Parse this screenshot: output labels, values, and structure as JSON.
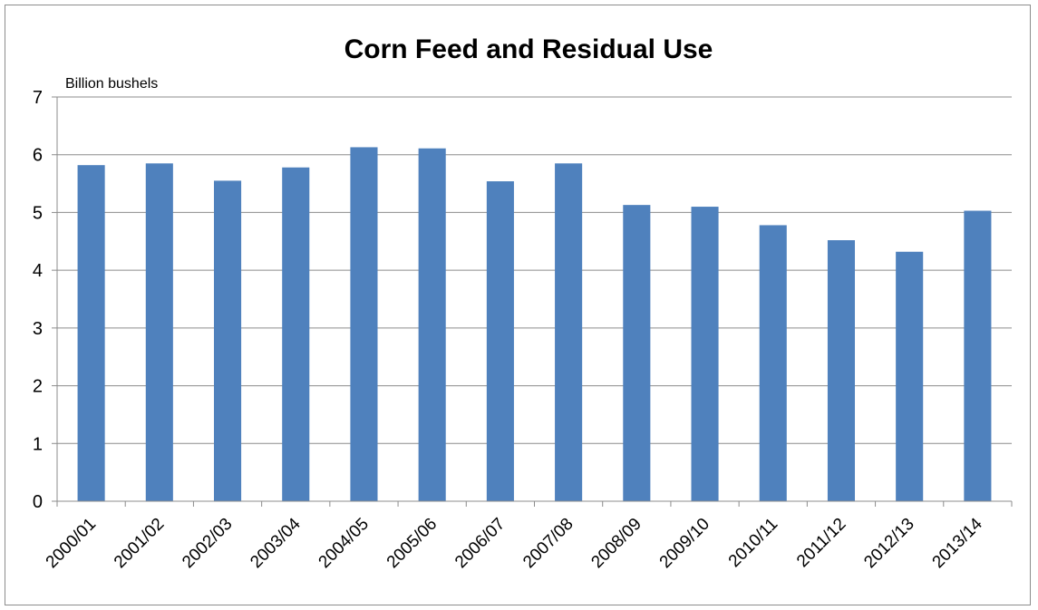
{
  "chart_data": {
    "type": "bar",
    "title": "Corn Feed and Residual Use",
    "unit_label": "Billion bushels",
    "xlabel": "",
    "ylabel": "",
    "ylim": [
      0,
      7
    ],
    "yticks": [
      "0",
      "1",
      "2",
      "3",
      "4",
      "5",
      "6",
      "7"
    ],
    "grid": true,
    "legend": "none",
    "bar_color": "#4f81bd",
    "categories": [
      "2000/01",
      "2001/02",
      "2002/03",
      "2003/04",
      "2004/05",
      "2005/06",
      "2006/07",
      "2007/08",
      "2008/09",
      "2009/10",
      "2010/11",
      "2011/12",
      "2012/13",
      "2013/14"
    ],
    "values": [
      5.82,
      5.85,
      5.55,
      5.78,
      6.13,
      6.11,
      5.54,
      5.85,
      5.13,
      5.1,
      4.78,
      4.52,
      4.32,
      5.03
    ]
  }
}
